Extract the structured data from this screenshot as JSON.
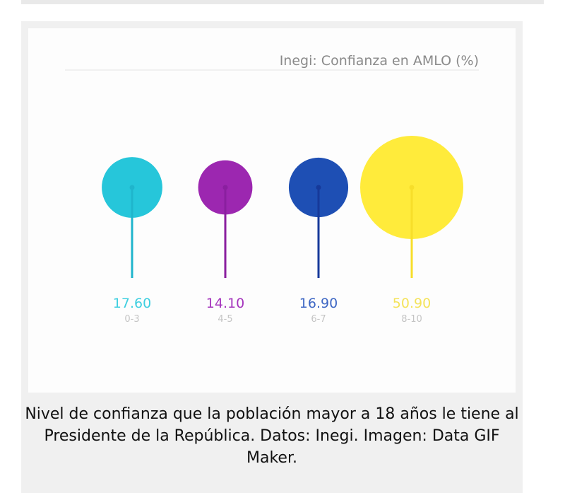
{
  "chart_data": {
    "type": "bubble",
    "title": "Inegi: Confianza en AMLO (%)",
    "categories": [
      "0-3",
      "4-5",
      "6-7",
      "8-10"
    ],
    "values": [
      17.6,
      14.1,
      16.9,
      50.9
    ],
    "value_labels": [
      "17.60",
      "14.10",
      "16.90",
      "50.90"
    ],
    "colors": [
      "#26c6da",
      "#9c27b0",
      "#1e4fb4",
      "#ffeb3b"
    ],
    "stem_colors": [
      "#1fb5cc",
      "#8a1f9f",
      "#16399a",
      "#f7de2a"
    ],
    "label_colors": [
      "#3fcfe0",
      "#a535bd",
      "#3e67c4",
      "#f4e35a"
    ],
    "grid": false,
    "legend": "none"
  },
  "caption": "Nivel de confianza que la población mayor a 18 años le tiene al Presidente de la República. Datos: Inegi. Imagen: Data GIF Maker."
}
